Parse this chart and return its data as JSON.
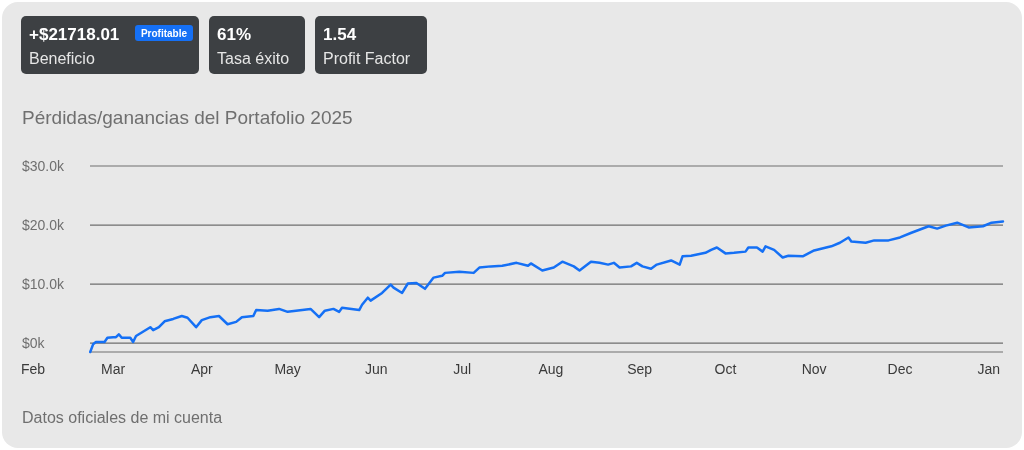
{
  "chart_data": {
    "type": "line",
    "title": "Pérdidas/ganancias del Portafolio 2025",
    "annotations": [
      "+$21718.01",
      "Profitable",
      "Beneficio",
      "61%",
      "Tasa éxito",
      "1.54",
      "Profit Factor",
      "Datos oficiales de mi cuenta"
    ],
    "xlim": [
      "2025-02-01",
      "2026-01-06"
    ],
    "xticks": [
      {
        "value": "2025-02-01",
        "label": "Feb"
      },
      {
        "value": "2025-03-01",
        "label": "Mar"
      },
      {
        "value": "2025-04-01",
        "label": "Apr"
      },
      {
        "value": "2025-05-01",
        "label": "May"
      },
      {
        "value": "2025-06-01",
        "label": "Jun"
      },
      {
        "value": "2025-07-01",
        "label": "Jul"
      },
      {
        "value": "2025-08-01",
        "label": "Aug"
      },
      {
        "value": "2025-09-01",
        "label": "Sep"
      },
      {
        "value": "2025-10-01",
        "label": "Oct"
      },
      {
        "value": "2025-11-01",
        "label": "Nov"
      },
      {
        "value": "2025-12-01",
        "label": "Dec"
      },
      {
        "value": "2026-01-01",
        "label": "Jan"
      }
    ],
    "ylim": [
      -1500,
      30000
    ],
    "yticks": [
      {
        "value": 0,
        "label": "$0k"
      },
      {
        "value": 10000,
        "label": "$10.0k"
      },
      {
        "value": 20000,
        "label": "$20.0k"
      },
      {
        "value": 30000,
        "label": "$30.0k"
      }
    ],
    "grid": "y",
    "series": [
      {
        "color": "#1570f5",
        "x": [
          "2025-02-21",
          "2025-02-22",
          "2025-02-23",
          "2025-02-26",
          "2025-02-27",
          "2025-03-01",
          "2025-03-02",
          "2025-03-03",
          "2025-03-04",
          "2025-03-07",
          "2025-03-08",
          "2025-03-09",
          "2025-03-13",
          "2025-03-14",
          "2025-03-15",
          "2025-03-17",
          "2025-03-19",
          "2025-03-22",
          "2025-03-25",
          "2025-03-27",
          "2025-03-30",
          "2025-04-01",
          "2025-04-04",
          "2025-04-07",
          "2025-04-10",
          "2025-04-13",
          "2025-04-15",
          "2025-04-19",
          "2025-04-20",
          "2025-04-24",
          "2025-04-28",
          "2025-05-01",
          "2025-05-09",
          "2025-05-12",
          "2025-05-14",
          "2025-05-17",
          "2025-05-19",
          "2025-05-20",
          "2025-05-26",
          "2025-05-27",
          "2025-05-29",
          "2025-05-30",
          "2025-06-03",
          "2025-06-06",
          "2025-06-07",
          "2025-06-10",
          "2025-06-12",
          "2025-06-15",
          "2025-06-18",
          "2025-06-21",
          "2025-06-24",
          "2025-06-25",
          "2025-06-30",
          "2025-07-05",
          "2025-07-07",
          "2025-07-11",
          "2025-07-15",
          "2025-07-20",
          "2025-07-24",
          "2025-07-25",
          "2025-07-29",
          "2025-08-02",
          "2025-08-05",
          "2025-08-09",
          "2025-08-11",
          "2025-08-15",
          "2025-08-18",
          "2025-08-21",
          "2025-08-23",
          "2025-08-25",
          "2025-08-29",
          "2025-08-31",
          "2025-09-02",
          "2025-09-05",
          "2025-09-07",
          "2025-09-12",
          "2025-09-15",
          "2025-09-16",
          "2025-09-19",
          "2025-09-24",
          "2025-09-26",
          "2025-09-28",
          "2025-10-01",
          "2025-10-04",
          "2025-10-08",
          "2025-10-09",
          "2025-10-12",
          "2025-10-14",
          "2025-10-15",
          "2025-10-18",
          "2025-10-21",
          "2025-10-23",
          "2025-10-28",
          "2025-11-01",
          "2025-11-07",
          "2025-11-10",
          "2025-11-13",
          "2025-11-14",
          "2025-11-19",
          "2025-11-22",
          "2025-11-27",
          "2025-12-01",
          "2025-12-05",
          "2025-12-11",
          "2025-12-14",
          "2025-12-17",
          "2025-12-21",
          "2025-12-25",
          "2025-12-30",
          "2026-01-02",
          "2026-01-06"
        ],
        "values": [
          -1500,
          -200,
          200,
          200,
          900,
          1000,
          1000,
          1500,
          900,
          900,
          200,
          1200,
          2400,
          2700,
          2200,
          2700,
          3700,
          4100,
          4600,
          4300,
          2700,
          3900,
          4400,
          4600,
          3200,
          3600,
          4400,
          4600,
          5600,
          5500,
          5800,
          5300,
          5800,
          4400,
          5500,
          5800,
          5300,
          6000,
          5600,
          6500,
          7700,
          7200,
          8500,
          9900,
          9400,
          8500,
          10100,
          10200,
          9200,
          11100,
          11400,
          11900,
          12100,
          11900,
          12800,
          13000,
          13100,
          13600,
          13100,
          13500,
          12300,
          12800,
          13800,
          13000,
          12300,
          13800,
          13600,
          13300,
          13600,
          12800,
          13000,
          13600,
          13000,
          12600,
          13300,
          14000,
          13300,
          14700,
          14800,
          15300,
          15800,
          16200,
          15200,
          15300,
          15500,
          16200,
          16200,
          15500,
          16400,
          15800,
          14500,
          14800,
          14700,
          15700,
          16400,
          17000,
          17900,
          17200,
          17000,
          17400,
          17400,
          17900,
          18700,
          19800,
          19400,
          19900,
          20400,
          19600,
          19800,
          20400,
          20600
        ]
      }
    ]
  }
}
